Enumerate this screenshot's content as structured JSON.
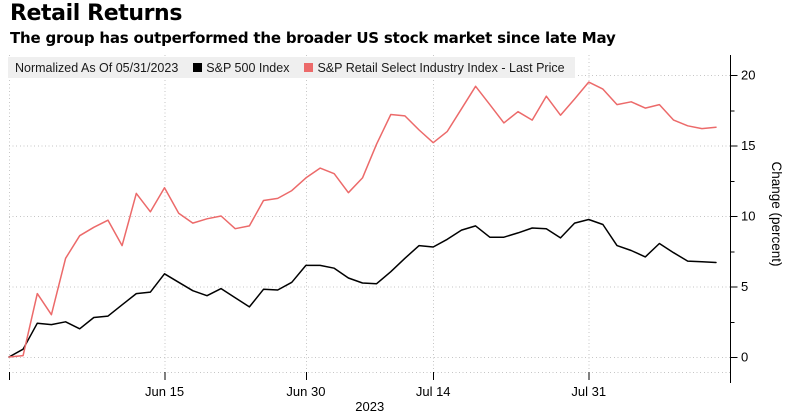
{
  "chart_data": {
    "type": "line",
    "title": "Retail Returns",
    "subtitle": "The group has outperformed the broader US stock market since late May",
    "normalized_label": "Normalized As Of 05/31/2023",
    "ylabel": "Change (percent)",
    "year_label": "2023",
    "yticks": [
      0,
      5,
      10,
      15,
      20
    ],
    "y_minor_ticks": [
      2.5,
      7.5,
      12.5,
      17.5
    ],
    "ylim": [
      -1.8,
      21.4
    ],
    "grid": true,
    "legend_position": "top",
    "n_points": 51,
    "xticks": [
      {
        "label": "Jun 15",
        "index": 11
      },
      {
        "label": "Jun 30",
        "index": 21
      },
      {
        "label": "Jul 14",
        "index": 30
      },
      {
        "label": "Jul 31",
        "index": 41
      }
    ],
    "series": [
      {
        "name": "S&P 500 Index",
        "color": "#000000",
        "values": [
          0,
          0.55,
          2.4,
          2.3,
          2.5,
          2.0,
          2.8,
          2.9,
          3.7,
          4.5,
          4.6,
          5.9,
          5.3,
          4.7,
          4.35,
          4.85,
          4.2,
          3.55,
          4.8,
          4.75,
          5.3,
          6.5,
          6.5,
          6.3,
          5.6,
          5.25,
          5.2,
          6.05,
          7.0,
          7.9,
          7.8,
          8.35,
          9.0,
          9.3,
          8.5,
          8.5,
          8.8,
          9.15,
          9.1,
          8.45,
          9.5,
          9.75,
          9.4,
          7.9,
          7.55,
          7.1,
          8.05,
          7.4,
          6.8,
          6.75,
          6.7
        ]
      },
      {
        "name": "S&P Retail Select Industry Index - Last Price",
        "color": "#ec6a6a",
        "values": [
          0,
          0.1,
          4.5,
          3.0,
          7.0,
          8.6,
          9.2,
          9.7,
          7.9,
          11.6,
          10.3,
          12.0,
          10.2,
          9.5,
          9.8,
          10.0,
          9.1,
          9.3,
          11.1,
          11.25,
          11.8,
          12.7,
          13.4,
          13.0,
          11.65,
          12.7,
          15.1,
          17.2,
          17.1,
          16.1,
          15.2,
          16.0,
          17.6,
          19.2,
          17.9,
          16.6,
          17.4,
          16.8,
          18.5,
          17.15,
          18.3,
          19.5,
          19.0,
          17.9,
          18.1,
          17.65,
          17.9,
          16.8,
          16.4,
          16.2,
          16.3
        ]
      }
    ]
  },
  "style": {
    "grid_color": "#c6c6c6",
    "legend_bg": "#efefef",
    "axis_color": "#000000"
  }
}
